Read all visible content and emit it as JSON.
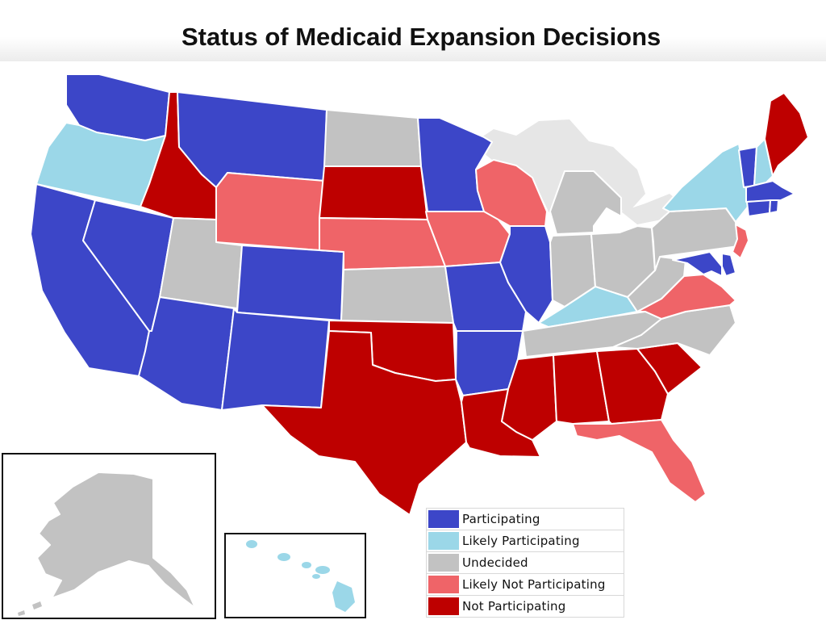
{
  "title": "Status of Medicaid Expansion Decisions",
  "colors": {
    "participating": "#3c46c8",
    "likely_participating": "#9bd7e8",
    "undecided": "#c2c2c2",
    "likely_not_participating": "#ef6468",
    "not_participating": "#be0000",
    "lakes": "#e6e6e6"
  },
  "legend": {
    "items": [
      {
        "key": "participating",
        "label": "Participating",
        "color": "#3c46c8"
      },
      {
        "key": "likely_participating",
        "label": "Likely Participating",
        "color": "#9bd7e8"
      },
      {
        "key": "undecided",
        "label": "Undecided",
        "color": "#c2c2c2"
      },
      {
        "key": "likely_not_participating",
        "label": "Likely Not Participating",
        "color": "#ef6468"
      },
      {
        "key": "not_participating",
        "label": "Not Participating",
        "color": "#be0000"
      }
    ]
  },
  "states": {
    "WA": "participating",
    "OR": "likely_participating",
    "CA": "participating",
    "NV": "participating",
    "ID": "not_participating",
    "MT": "participating",
    "WY": "likely_not_participating",
    "UT": "undecided",
    "AZ": "participating",
    "CO": "participating",
    "NM": "participating",
    "ND": "undecided",
    "SD": "not_participating",
    "NE": "likely_not_participating",
    "KS": "undecided",
    "OK": "not_participating",
    "TX": "not_participating",
    "MN": "participating",
    "IA": "likely_not_participating",
    "MO": "participating",
    "AR": "participating",
    "LA": "not_participating",
    "WI": "likely_not_participating",
    "IL": "participating",
    "MI": "undecided",
    "IN": "undecided",
    "OH": "undecided",
    "KY": "likely_participating",
    "TN": "undecided",
    "MS": "not_participating",
    "AL": "not_participating",
    "GA": "not_participating",
    "FL": "likely_not_participating",
    "SC": "not_participating",
    "NC": "undecided",
    "VA": "likely_not_participating",
    "WV": "undecided",
    "PA": "undecided",
    "NY": "likely_participating",
    "NJ": "likely_not_participating",
    "MD": "participating",
    "DE": "participating",
    "CT": "participating",
    "RI": "participating",
    "MA": "participating",
    "VT": "participating",
    "NH": "likely_participating",
    "ME": "not_participating",
    "AK": "undecided",
    "HI": "likely_participating"
  }
}
